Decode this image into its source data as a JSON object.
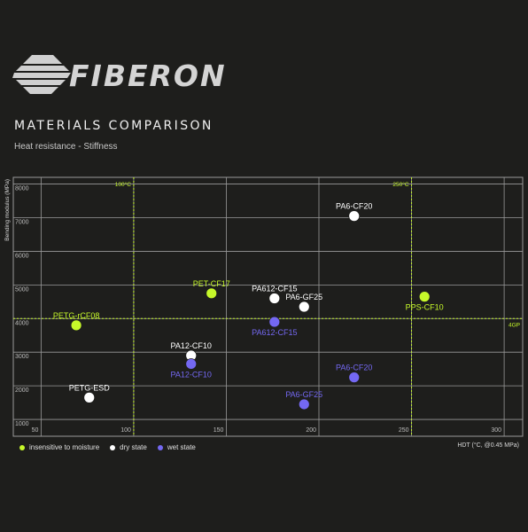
{
  "brand": {
    "name": "FIBERON",
    "logo_icon": "striped-fiber-logo"
  },
  "heading": {
    "title": "MATERIALS COMPARISON",
    "subtitle": "Heat resistance - Stiffness"
  },
  "colors": {
    "moisture": "#c6f82a",
    "dry": "#ffffff",
    "wet": "#7468f2",
    "grid": "#9a9a9a",
    "ref": "#c6f82a"
  },
  "legend": [
    {
      "label": "insensitive to moisture",
      "color": "#c6f82a"
    },
    {
      "label": "dry state",
      "color": "#ffffff"
    },
    {
      "label": "wet state",
      "color": "#7468f2"
    }
  ],
  "chart_data": {
    "type": "scatter",
    "title": "",
    "xlabel": "HDT (°C, @0.45 MPa)",
    "ylabel": "Bending modulus (MPa)",
    "xlim": [
      35,
      310
    ],
    "ylim": [
      500,
      8200
    ],
    "x_ticks": [
      50,
      100,
      150,
      200,
      250,
      300
    ],
    "y_ticks": [
      1000,
      2000,
      3000,
      4000,
      5000,
      6000,
      7000,
      8000
    ],
    "grid": true,
    "reference_lines": [
      {
        "axis": "x",
        "value": 100,
        "label": "100°C"
      },
      {
        "axis": "x",
        "value": 250,
        "label": "250°C"
      },
      {
        "axis": "y",
        "value": 4000,
        "label": "4GP"
      }
    ],
    "series": [
      {
        "name": "insensitive to moisture",
        "points": [
          {
            "label": "PETG-rCF08",
            "x": 69,
            "y": 3800,
            "label_pos": "above"
          },
          {
            "label": "PET-CF17",
            "x": 142,
            "y": 4750,
            "label_pos": "above"
          },
          {
            "label": "PPS-CF10",
            "x": 257,
            "y": 4650,
            "label_pos": "below"
          }
        ]
      },
      {
        "name": "dry state",
        "points": [
          {
            "label": "PETG-ESD",
            "x": 76,
            "y": 1650,
            "label_pos": "above"
          },
          {
            "label": "PA12-CF10",
            "x": 131,
            "y": 2900,
            "label_pos": "above"
          },
          {
            "label": "PA612-CF15",
            "x": 176,
            "y": 4600,
            "label_pos": "above"
          },
          {
            "label": "PA6-GF25",
            "x": 192,
            "y": 4350,
            "label_pos": "above"
          },
          {
            "label": "PA6-CF20",
            "x": 219,
            "y": 7050,
            "label_pos": "above"
          }
        ]
      },
      {
        "name": "wet state",
        "points": [
          {
            "label": "PA12-CF10",
            "x": 131,
            "y": 2650,
            "label_pos": "below"
          },
          {
            "label": "PA612-CF15",
            "x": 176,
            "y": 3900,
            "label_pos": "below"
          },
          {
            "label": "PA6-CF20",
            "x": 219,
            "y": 2250,
            "label_pos": "above"
          },
          {
            "label": "PA6-GF25",
            "x": 192,
            "y": 1450,
            "label_pos": "above"
          }
        ]
      }
    ]
  }
}
